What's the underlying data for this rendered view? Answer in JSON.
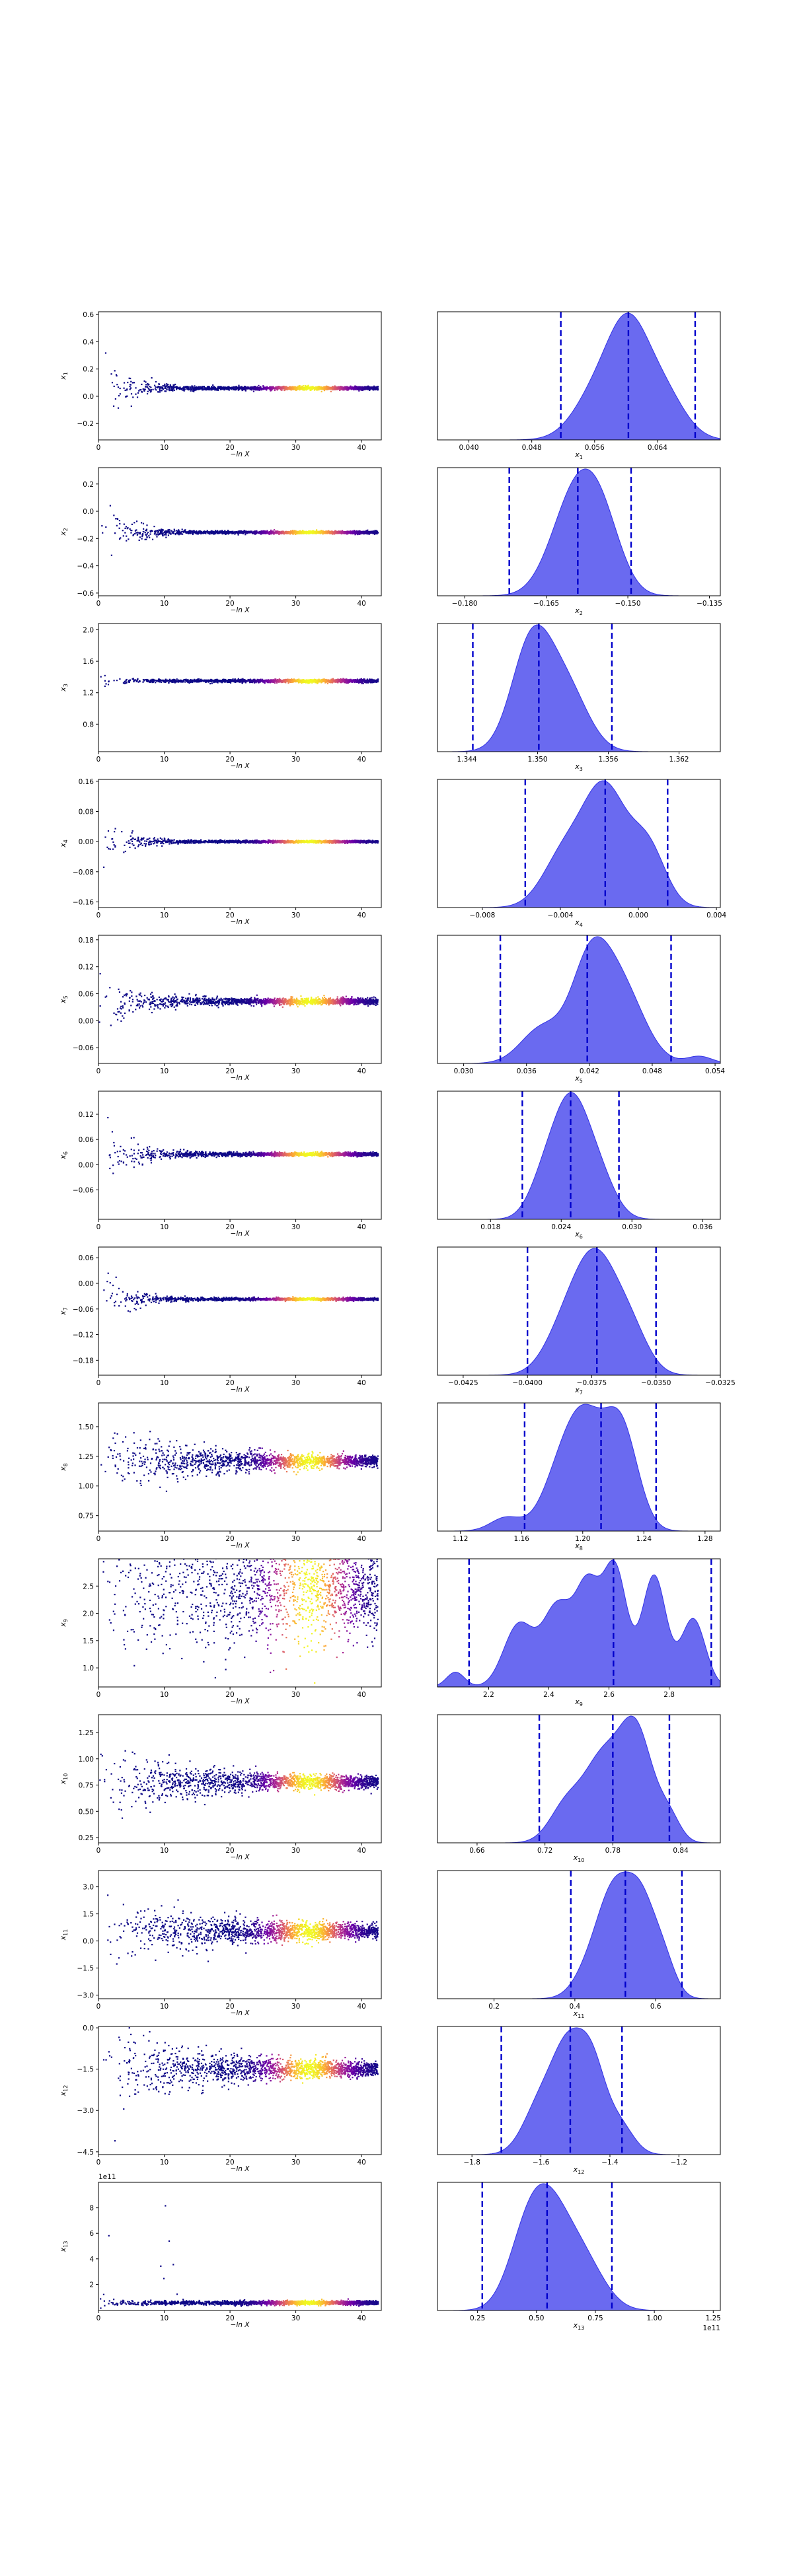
{
  "figure": {
    "background": "#ffffff",
    "trace_xlabel": "−ln X",
    "trace_cmap": [
      "#0d0887",
      "#6a00a8",
      "#b12a90",
      "#e16462",
      "#fca636",
      "#f0f921"
    ],
    "kde_fill": "#6a6af0",
    "kde_edge": "#3232e6",
    "quantile_color": "#0000cc"
  },
  "chart_data": [
    {
      "type": "scatter",
      "name": "trace",
      "ylabel": "x1",
      "ylabel_sub": "1",
      "xlim": [
        0,
        43
      ],
      "ylim": [
        -0.32,
        0.62
      ],
      "xticks": [
        0,
        10,
        20,
        30,
        40
      ],
      "yticks": [
        -0.2,
        0.0,
        0.2,
        0.4,
        0.6
      ],
      "ytick_labels": [
        "−0.2",
        "0.0",
        "0.2",
        "0.4",
        "0.6"
      ],
      "center": 0.06,
      "spread": 0.2,
      "decay": 3.2,
      "floor": 0.006
    },
    {
      "type": "area",
      "name": "posterior",
      "xlabel": "x1",
      "xlabel_sub": "1",
      "xlim": [
        0.036,
        0.072
      ],
      "xticks": [
        0.04,
        0.048,
        0.056,
        0.064
      ],
      "xtick_labels": [
        "0.040",
        "0.048",
        "0.056",
        "0.064"
      ],
      "quantiles": [
        0.0517,
        0.0603,
        0.0688
      ],
      "peaks": [
        [
          0.0603,
          1.0,
          0.0025
        ],
        [
          0.0565,
          0.55,
          0.003
        ],
        [
          0.0645,
          0.55,
          0.0028
        ]
      ]
    },
    {
      "type": "scatter",
      "name": "trace",
      "ylabel": "x2",
      "ylabel_sub": "2",
      "xlim": [
        0,
        43
      ],
      "ylim": [
        -0.62,
        0.32
      ],
      "xticks": [
        0,
        10,
        20,
        30,
        40
      ],
      "yticks": [
        -0.6,
        -0.4,
        -0.2,
        0.0,
        0.2
      ],
      "ytick_labels": [
        "−0.6",
        "−0.4",
        "−0.2",
        "0.0",
        "0.2"
      ],
      "center": -0.155,
      "spread": 0.19,
      "decay": 3.2,
      "floor": 0.005
    },
    {
      "type": "area",
      "name": "posterior",
      "xlabel": "x2",
      "xlabel_sub": "2",
      "xlim": [
        -0.185,
        -0.133
      ],
      "xticks": [
        -0.18,
        -0.165,
        -0.15,
        -0.135
      ],
      "xtick_labels": [
        "−0.180",
        "−0.165",
        "−0.150",
        "−0.135"
      ],
      "quantiles": [
        -0.1718,
        -0.1592,
        -0.1494
      ],
      "peaks": [
        [
          -0.1575,
          1.0,
          0.004
        ],
        [
          -0.1615,
          0.7,
          0.004
        ],
        [
          -0.154,
          0.5,
          0.0035
        ]
      ]
    },
    {
      "type": "scatter",
      "name": "trace",
      "ylabel": "x3",
      "ylabel_sub": "3",
      "xlim": [
        0,
        43
      ],
      "ylim": [
        0.45,
        2.08
      ],
      "xticks": [
        0,
        10,
        20,
        30,
        40
      ],
      "yticks": [
        0.8,
        1.2,
        1.6,
        2.0
      ],
      "ytick_labels": [
        "0.8",
        "1.2",
        "1.6",
        "2.0"
      ],
      "center": 1.35,
      "spread": 0.12,
      "decay": 1.6,
      "floor": 0.01
    },
    {
      "type": "area",
      "name": "posterior",
      "xlabel": "x3",
      "xlabel_sub": "3",
      "xlim": [
        1.3415,
        1.3655
      ],
      "xticks": [
        1.344,
        1.35,
        1.356,
        1.362
      ],
      "xtick_labels": [
        "1.344",
        "1.350",
        "1.356",
        "1.362"
      ],
      "quantiles": [
        1.3445,
        1.3501,
        1.3563
      ],
      "peaks": [
        [
          1.3495,
          1.0,
          0.0017
        ],
        [
          1.3525,
          0.55,
          0.0018
        ]
      ]
    },
    {
      "type": "scatter",
      "name": "trace",
      "ylabel": "x4",
      "ylabel_sub": "4",
      "xlim": [
        0,
        43
      ],
      "ylim": [
        -0.175,
        0.165
      ],
      "xticks": [
        0,
        10,
        20,
        30,
        40
      ],
      "yticks": [
        -0.16,
        -0.08,
        0.0,
        0.08,
        0.16
      ],
      "ytick_labels": [
        "−0.16",
        "−0.08",
        "0.00",
        "0.08",
        "0.16"
      ],
      "center": 0.0,
      "spread": 0.055,
      "decay": 3.0,
      "floor": 0.0015
    },
    {
      "type": "area",
      "name": "posterior",
      "xlabel": "x4",
      "xlabel_sub": "4",
      "xlim": [
        -0.0103,
        0.0042
      ],
      "xticks": [
        -0.008,
        -0.004,
        0.0,
        0.004
      ],
      "xtick_labels": [
        "−0.008",
        "−0.004",
        "0.000",
        "0.004"
      ],
      "quantiles": [
        -0.0058,
        -0.0017,
        0.0015
      ],
      "peaks": [
        [
          -0.0017,
          1.0,
          0.0011
        ],
        [
          -0.0038,
          0.45,
          0.0011
        ],
        [
          0.0005,
          0.5,
          0.0009
        ]
      ]
    },
    {
      "type": "scatter",
      "name": "trace",
      "ylabel": "x5",
      "ylabel_sub": "5",
      "xlim": [
        0,
        43
      ],
      "ylim": [
        -0.095,
        0.19
      ],
      "xticks": [
        0,
        10,
        20,
        30,
        40
      ],
      "yticks": [
        -0.06,
        0.0,
        0.06,
        0.12,
        0.18
      ],
      "ytick_labels": [
        "−0.06",
        "0.00",
        "0.06",
        "0.12",
        "0.18"
      ],
      "center": 0.043,
      "spread": 0.035,
      "decay": 4.5,
      "floor": 0.0035
    },
    {
      "type": "area",
      "name": "posterior",
      "xlabel": "x5",
      "xlabel_sub": "5",
      "xlim": [
        0.0275,
        0.0545
      ],
      "xticks": [
        0.03,
        0.036,
        0.042,
        0.048,
        0.054
      ],
      "xtick_labels": [
        "0.030",
        "0.036",
        "0.042",
        "0.048",
        "0.054"
      ],
      "quantiles": [
        0.0335,
        0.0418,
        0.0498
      ],
      "peaks": [
        [
          0.042,
          1.0,
          0.0018
        ],
        [
          0.045,
          0.85,
          0.0022
        ],
        [
          0.0375,
          0.4,
          0.002
        ],
        [
          0.0525,
          0.08,
          0.0012
        ]
      ]
    },
    {
      "type": "scatter",
      "name": "trace",
      "ylabel": "x6",
      "ylabel_sub": "6",
      "xlim": [
        0,
        43
      ],
      "ylim": [
        -0.13,
        0.175
      ],
      "xticks": [
        0,
        10,
        20,
        30,
        40
      ],
      "yticks": [
        -0.06,
        0.0,
        0.06,
        0.12
      ],
      "ytick_labels": [
        "−0.06",
        "0.00",
        "0.06",
        "0.12"
      ],
      "center": 0.025,
      "spread": 0.04,
      "decay": 4.5,
      "floor": 0.002
    },
    {
      "type": "area",
      "name": "posterior",
      "xlabel": "x6",
      "xlabel_sub": "6",
      "xlim": [
        0.0135,
        0.0375
      ],
      "xticks": [
        0.018,
        0.024,
        0.03,
        0.036
      ],
      "xtick_labels": [
        "0.018",
        "0.024",
        "0.030",
        "0.036"
      ],
      "quantiles": [
        0.0207,
        0.0248,
        0.0289
      ],
      "peaks": [
        [
          0.0248,
          1.0,
          0.0015
        ],
        [
          0.0272,
          0.35,
          0.0014
        ],
        [
          0.0225,
          0.3,
          0.0013
        ]
      ]
    },
    {
      "type": "scatter",
      "name": "trace",
      "ylabel": "x7",
      "ylabel_sub": "7",
      "xlim": [
        0,
        43
      ],
      "ylim": [
        -0.215,
        0.085
      ],
      "xticks": [
        0,
        10,
        20,
        30,
        40
      ],
      "yticks": [
        -0.18,
        -0.12,
        -0.06,
        0.0,
        0.06
      ],
      "ytick_labels": [
        "−0.18",
        "−0.12",
        "−0.06",
        "0.00",
        "0.06"
      ],
      "center": -0.037,
      "spread": 0.045,
      "decay": 3.5,
      "floor": 0.0015
    },
    {
      "type": "area",
      "name": "posterior",
      "xlabel": "x7",
      "xlabel_sub": "7",
      "xlim": [
        -0.0435,
        -0.0325
      ],
      "xticks": [
        -0.0425,
        -0.04,
        -0.0375,
        -0.035,
        -0.0325
      ],
      "xtick_labels": [
        "−0.0425",
        "−0.0400",
        "−0.0375",
        "−0.0350",
        "−0.0325"
      ],
      "quantiles": [
        -0.04,
        -0.0373,
        -0.035
      ],
      "peaks": [
        [
          -0.0373,
          1.0,
          0.0008
        ],
        [
          -0.0385,
          0.45,
          0.0008
        ],
        [
          -0.036,
          0.4,
          0.0007
        ]
      ]
    },
    {
      "type": "scatter",
      "name": "trace",
      "ylabel": "x8",
      "ylabel_sub": "8",
      "xlim": [
        0,
        43
      ],
      "ylim": [
        0.62,
        1.7
      ],
      "xticks": [
        0,
        10,
        20,
        30,
        40
      ],
      "yticks": [
        0.75,
        1.0,
        1.25,
        1.5
      ],
      "ytick_labels": [
        "0.75",
        "1.00",
        "1.25",
        "1.50"
      ],
      "center": 1.21,
      "spread": 0.15,
      "decay": 12,
      "floor": 0.018
    },
    {
      "type": "area",
      "name": "posterior",
      "xlabel": "x8",
      "xlabel_sub": "8",
      "xlim": [
        1.105,
        1.29
      ],
      "xticks": [
        1.12,
        1.16,
        1.2,
        1.24,
        1.28
      ],
      "xtick_labels": [
        "1.12",
        "1.16",
        "1.20",
        "1.24",
        "1.28"
      ],
      "quantiles": [
        1.162,
        1.212,
        1.248
      ],
      "peaks": [
        [
          1.202,
          0.85,
          0.012
        ],
        [
          1.225,
          0.9,
          0.011
        ],
        [
          1.185,
          0.45,
          0.012
        ],
        [
          1.15,
          0.12,
          0.01
        ]
      ]
    },
    {
      "type": "scatter",
      "name": "trace",
      "ylabel": "x9",
      "ylabel_sub": "9",
      "xlim": [
        0,
        43
      ],
      "ylim": [
        0.65,
        3.0
      ],
      "xticks": [
        0,
        10,
        20,
        30,
        40
      ],
      "yticks": [
        1.0,
        1.5,
        2.0,
        2.5
      ],
      "ytick_labels": [
        "1.0",
        "1.5",
        "2.0",
        "2.5"
      ],
      "center": 2.45,
      "spread": 0.35,
      "decay": 60,
      "floor": 0.3
    },
    {
      "type": "area",
      "name": "posterior",
      "xlabel": "x9",
      "xlabel_sub": "9",
      "xlim": [
        2.03,
        2.97
      ],
      "xticks": [
        2.2,
        2.4,
        2.6,
        2.8
      ],
      "xtick_labels": [
        "2.2",
        "2.4",
        "2.6",
        "2.8"
      ],
      "quantiles": [
        2.135,
        2.615,
        2.94
      ],
      "peaks": [
        [
          2.62,
          0.95,
          0.04
        ],
        [
          2.75,
          0.9,
          0.04
        ],
        [
          2.53,
          0.75,
          0.04
        ],
        [
          2.43,
          0.65,
          0.05
        ],
        [
          2.3,
          0.5,
          0.05
        ],
        [
          2.88,
          0.55,
          0.04
        ],
        [
          2.09,
          0.12,
          0.03
        ]
      ]
    },
    {
      "type": "scatter",
      "name": "trace",
      "ylabel": "x10",
      "ylabel_sub": "10",
      "xlim": [
        0,
        43
      ],
      "ylim": [
        0.2,
        1.42
      ],
      "xticks": [
        0,
        10,
        20,
        30,
        40
      ],
      "yticks": [
        0.25,
        0.5,
        0.75,
        1.0,
        1.25
      ],
      "ytick_labels": [
        "0.25",
        "0.50",
        "0.75",
        "1.00",
        "1.25"
      ],
      "center": 0.78,
      "spread": 0.17,
      "decay": 12,
      "floor": 0.025
    },
    {
      "type": "area",
      "name": "posterior",
      "xlabel": "x10",
      "xlabel_sub": "10",
      "xlim": [
        0.625,
        0.875
      ],
      "xticks": [
        0.66,
        0.72,
        0.78,
        0.84
      ],
      "xtick_labels": [
        "0.66",
        "0.72",
        "0.78",
        "0.84"
      ],
      "quantiles": [
        0.715,
        0.78,
        0.83
      ],
      "peaks": [
        [
          0.8,
          1.0,
          0.015
        ],
        [
          0.77,
          0.65,
          0.015
        ],
        [
          0.74,
          0.35,
          0.015
        ],
        [
          0.83,
          0.2,
          0.01
        ]
      ]
    },
    {
      "type": "scatter",
      "name": "trace",
      "ylabel": "x11",
      "ylabel_sub": "11",
      "xlim": [
        0,
        43
      ],
      "ylim": [
        -3.2,
        3.9
      ],
      "xticks": [
        0,
        10,
        20,
        30,
        40
      ],
      "yticks": [
        -3.0,
        -1.5,
        0.0,
        1.5,
        3.0
      ],
      "ytick_labels": [
        "−3.0",
        "−1.5",
        "0.0",
        "1.5",
        "3.0"
      ],
      "center": 0.55,
      "spread": 0.95,
      "decay": 14,
      "floor": 0.15
    },
    {
      "type": "area",
      "name": "posterior",
      "xlabel": "x11",
      "xlabel_sub": "11",
      "xlim": [
        0.06,
        0.76
      ],
      "xticks": [
        0.2,
        0.4,
        0.6
      ],
      "xtick_labels": [
        "0.2",
        "0.4",
        "0.6"
      ],
      "quantiles": [
        0.39,
        0.525,
        0.665
      ],
      "peaks": [
        [
          0.5,
          1.0,
          0.04
        ],
        [
          0.565,
          0.85,
          0.035
        ],
        [
          0.44,
          0.3,
          0.04
        ],
        [
          0.62,
          0.35,
          0.03
        ]
      ]
    },
    {
      "type": "scatter",
      "name": "trace",
      "ylabel": "x12",
      "ylabel_sub": "12",
      "xlim": [
        0,
        43
      ],
      "ylim": [
        -4.6,
        0.05
      ],
      "xticks": [
        0,
        10,
        20,
        30,
        40
      ],
      "yticks": [
        -4.5,
        -3.0,
        -1.5,
        0.0
      ],
      "ytick_labels": [
        "−4.5",
        "−3.0",
        "−1.5",
        "0.0"
      ],
      "center": -1.5,
      "spread": 0.75,
      "decay": 14,
      "floor": 0.09
    },
    {
      "type": "area",
      "name": "posterior",
      "xlabel": "x12",
      "xlabel_sub": "12",
      "xlim": [
        -1.9,
        -1.08
      ],
      "xticks": [
        -1.8,
        -1.6,
        -1.4,
        -1.2
      ],
      "xtick_labels": [
        "−1.8",
        "−1.6",
        "−1.4",
        "−1.2"
      ],
      "quantiles": [
        -1.715,
        -1.515,
        -1.365
      ],
      "peaks": [
        [
          -1.52,
          1.0,
          0.045
        ],
        [
          -1.45,
          0.85,
          0.04
        ],
        [
          -1.6,
          0.55,
          0.05
        ],
        [
          -1.37,
          0.3,
          0.04
        ]
      ]
    },
    {
      "type": "scatter",
      "name": "trace",
      "ylabel": "x13",
      "ylabel_sub": "13",
      "offset_text": "1e11",
      "xlim": [
        0,
        43
      ],
      "ylim": [
        -0.05,
        10.0
      ],
      "xticks": [
        0,
        10,
        20,
        30,
        40
      ],
      "yticks": [
        2,
        4,
        6,
        8
      ],
      "ytick_labels": [
        "2",
        "4",
        "6",
        "8"
      ],
      "center": 0.55,
      "spread": 0.3,
      "decay": 1,
      "floor": 0.08,
      "outliers": true
    },
    {
      "type": "area",
      "name": "posterior",
      "xlabel": "x13",
      "xlabel_sub": "13",
      "offset_text": "1e11",
      "xlim": [
        0.08,
        1.28
      ],
      "xticks": [
        0.25,
        0.5,
        0.75,
        1.0,
        1.25
      ],
      "xtick_labels": [
        "0.25",
        "0.50",
        "0.75",
        "1.00",
        "1.25"
      ],
      "quantiles": [
        0.27,
        0.545,
        0.82
      ],
      "peaks": [
        [
          0.55,
          1.0,
          0.09
        ],
        [
          0.45,
          0.55,
          0.08
        ],
        [
          0.7,
          0.5,
          0.09
        ]
      ]
    }
  ]
}
